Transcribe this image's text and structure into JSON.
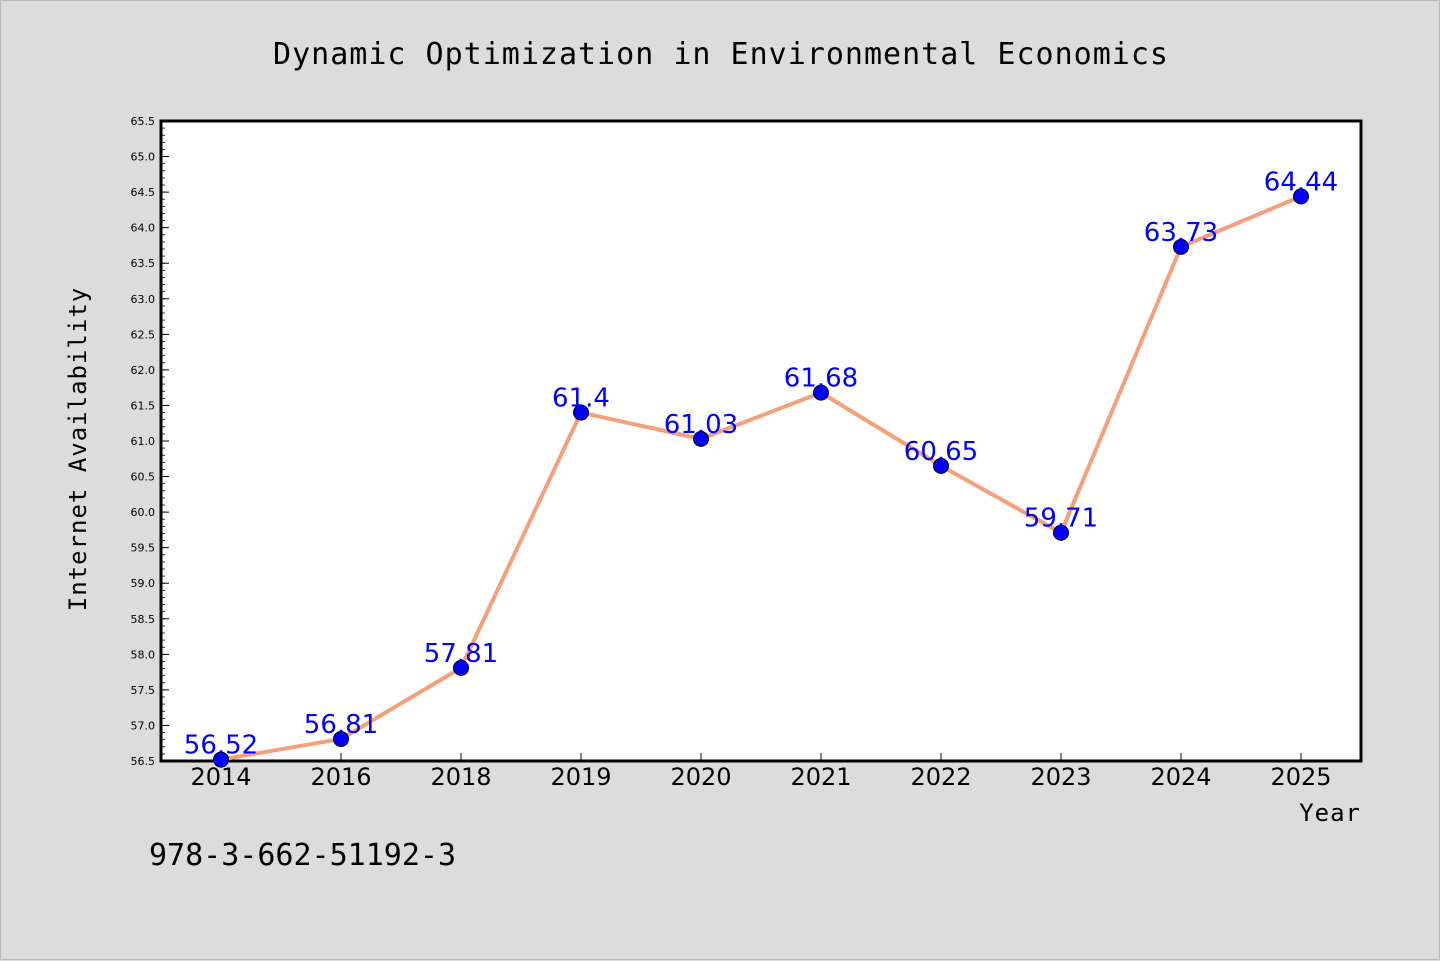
{
  "footer_text": "978-3-662-51192-3",
  "colors": {
    "background": "#dcdcdc",
    "plot_background": "#ffffff",
    "line": "#f4a07a",
    "marker": "#0000ff",
    "data_label": "#0000ff"
  },
  "chart_data": {
    "type": "line",
    "title": "Dynamic Optimization in Environmental Economics",
    "xlabel": "Year",
    "ylabel": "Internet Availability",
    "categories": [
      "2014",
      "2016",
      "2018",
      "2019",
      "2020",
      "2021",
      "2022",
      "2023",
      "2024",
      "2025"
    ],
    "series": [
      {
        "values": [
          56.52,
          56.81,
          57.81,
          61.4,
          61.03,
          61.68,
          60.65,
          59.71,
          63.73,
          64.44
        ],
        "labels": [
          "56.52",
          "56.81",
          "57.81",
          "61.4",
          "61.03",
          "61.68",
          "60.65",
          "59.71",
          "63.73",
          "64.44"
        ]
      }
    ],
    "ylim": [
      56.5,
      65.5
    ],
    "yticks": [
      "56.5",
      "57.0",
      "57.5",
      "58.0",
      "58.5",
      "59.0",
      "59.5",
      "60.0",
      "60.5",
      "61.0",
      "61.5",
      "62.0",
      "62.5",
      "63.0",
      "63.5",
      "64.0",
      "64.5",
      "65.0",
      "65.5"
    ],
    "grid": false,
    "legend": "none"
  }
}
